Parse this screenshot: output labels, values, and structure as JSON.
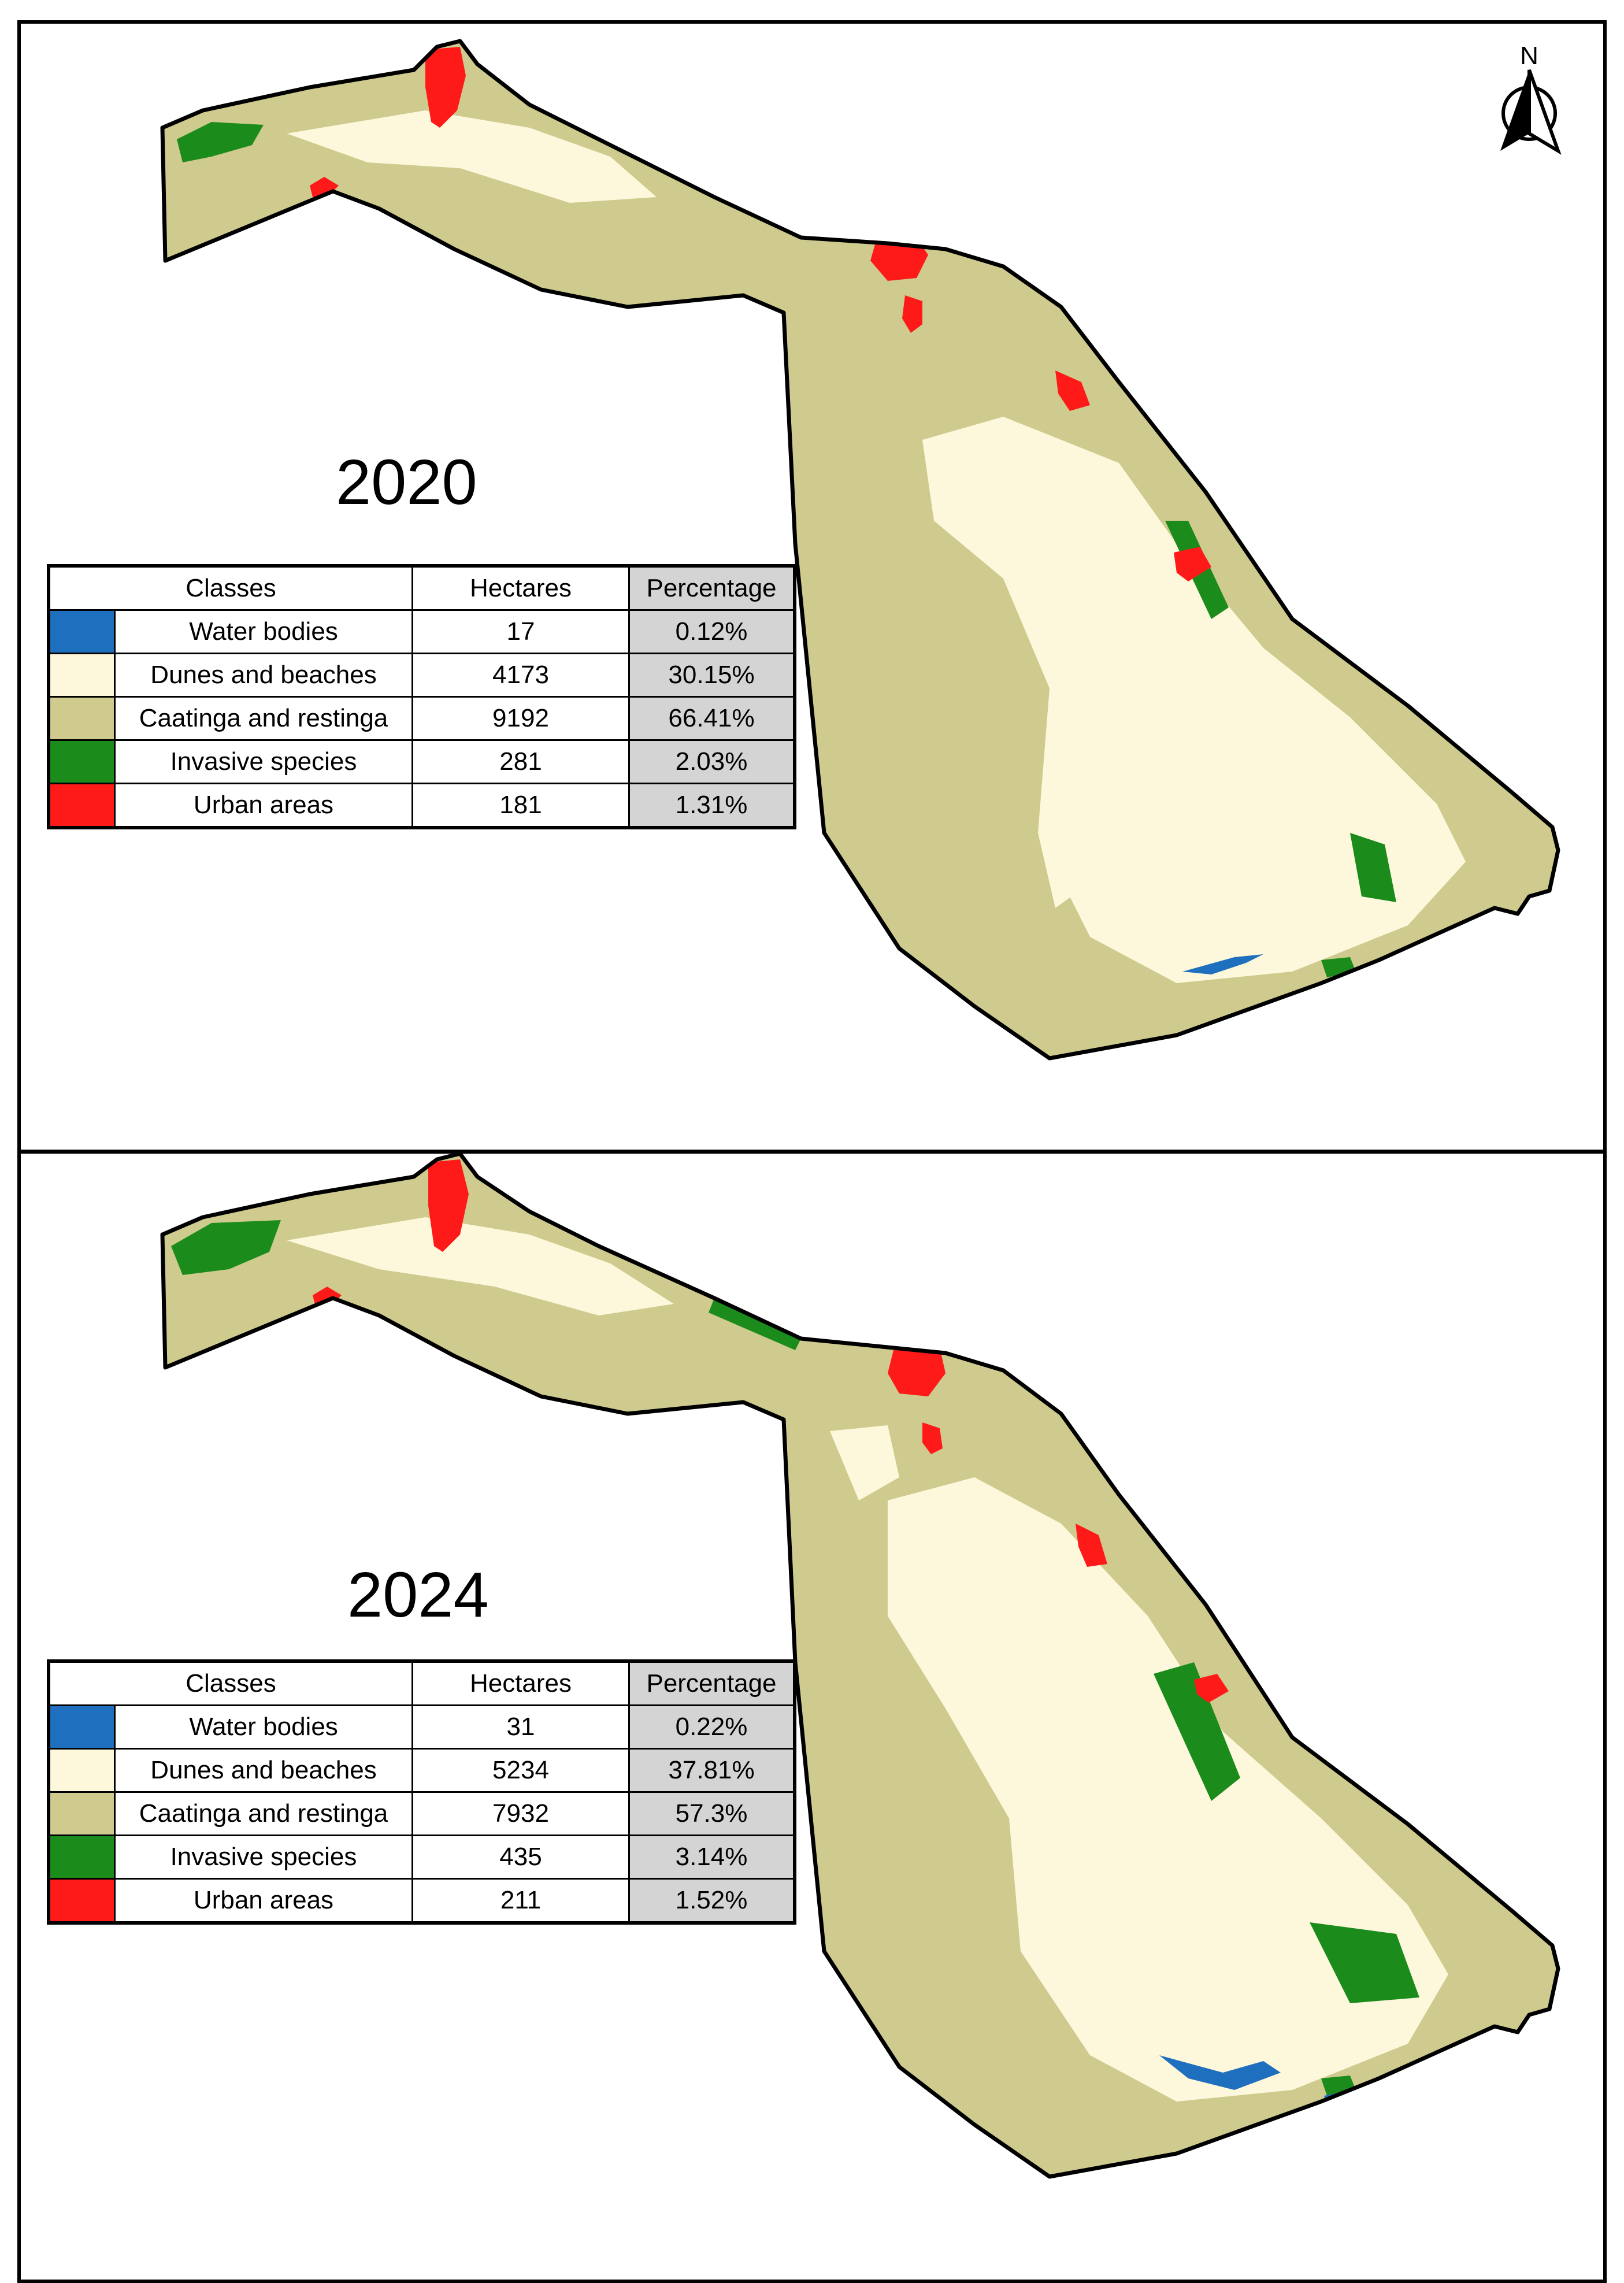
{
  "colors": {
    "water": "#1f6fbf",
    "dunes": "#fdf8dc",
    "caatinga": "#cfcb8e",
    "invasive": "#1b8c1b",
    "urban": "#ff1a1a"
  },
  "north_label": "N",
  "table_headers": {
    "classes": "Classes",
    "hectares": "Hectares",
    "percentage": "Percentage"
  },
  "maps": [
    {
      "year": "2020",
      "rows": [
        {
          "class": "Water bodies",
          "hectares": "17",
          "percentage": "0.12%",
          "color_key": "water"
        },
        {
          "class": "Dunes and beaches",
          "hectares": "4173",
          "percentage": "30.15%",
          "color_key": "dunes"
        },
        {
          "class": "Caatinga and restinga",
          "hectares": "9192",
          "percentage": "66.41%",
          "color_key": "caatinga"
        },
        {
          "class": "Invasive species",
          "hectares": "281",
          "percentage": "2.03%",
          "color_key": "invasive"
        },
        {
          "class": "Urban areas",
          "hectares": "181",
          "percentage": "1.31%",
          "color_key": "urban"
        }
      ]
    },
    {
      "year": "2024",
      "rows": [
        {
          "class": "Water bodies",
          "hectares": "31",
          "percentage": "0.22%",
          "color_key": "water"
        },
        {
          "class": "Dunes and beaches",
          "hectares": "5234",
          "percentage": "37.81%",
          "color_key": "dunes"
        },
        {
          "class": "Caatinga and restinga",
          "hectares": "7932",
          "percentage": "57.3%",
          "color_key": "caatinga"
        },
        {
          "class": "Invasive species",
          "hectares": "435",
          "percentage": "3.14%",
          "color_key": "invasive"
        },
        {
          "class": "Urban areas",
          "hectares": "211",
          "percentage": "1.52%",
          "color_key": "urban"
        }
      ]
    }
  ]
}
